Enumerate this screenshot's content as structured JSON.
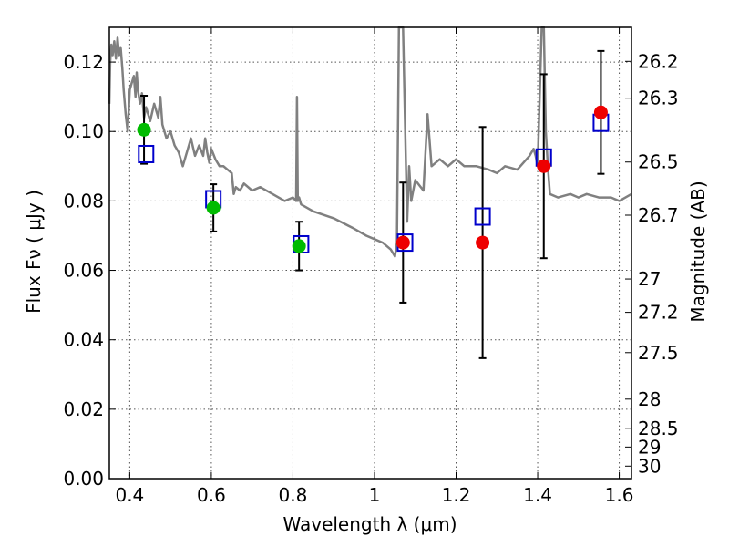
{
  "chart_data": {
    "type": "scatter",
    "xlabel": "Wavelength  λ (μm)",
    "ylabel": "Flux  Fν  ( μJy )",
    "ylabel_right": "Magnitude (AB)",
    "xlim": [
      0.35,
      1.63
    ],
    "ylim": [
      0.0,
      0.13
    ],
    "grid": true,
    "x_ticks": [
      0.4,
      0.6,
      0.8,
      1.0,
      1.2,
      1.4,
      1.6
    ],
    "x_tick_labels": [
      "0.4",
      "0.6",
      "0.8",
      "1",
      "1.2",
      "1.4",
      "1.6"
    ],
    "y_ticks": [
      0.0,
      0.02,
      0.04,
      0.06,
      0.08,
      0.1,
      0.12
    ],
    "y_tick_labels": [
      "0.00",
      "0.02",
      "0.04",
      "0.06",
      "0.08",
      "0.10",
      "0.12"
    ],
    "right_ticks": [
      {
        "label": "26.2",
        "flux": 0.1202
      },
      {
        "label": "26.3",
        "flux": 0.1096
      },
      {
        "label": "26.5",
        "flux": 0.0912
      },
      {
        "label": "26.7",
        "flux": 0.0759
      },
      {
        "label": "27",
        "flux": 0.0575
      },
      {
        "label": "27.2",
        "flux": 0.0479
      },
      {
        "label": "27.5",
        "flux": 0.0363
      },
      {
        "label": "28",
        "flux": 0.0229
      },
      {
        "label": "28.5",
        "flux": 0.0145
      },
      {
        "label": "29",
        "flux": 0.0091
      },
      {
        "label": "30",
        "flux": 0.0036
      }
    ],
    "colors": {
      "sed": "#808080",
      "model": "#0000cc",
      "green": "#00bb00",
      "red": "#ee0000",
      "errorbar": "#000000",
      "grid": "#555555"
    },
    "series": [
      {
        "kind": "line",
        "x": [
          0.35,
          0.352,
          0.355,
          0.358,
          0.362,
          0.366,
          0.37,
          0.374,
          0.378,
          0.382,
          0.385,
          0.39,
          0.395,
          0.4,
          0.405,
          0.41,
          0.414,
          0.417,
          0.42,
          0.425,
          0.43,
          0.435,
          0.44,
          0.45,
          0.46,
          0.47,
          0.475,
          0.48,
          0.49,
          0.5,
          0.51,
          0.52,
          0.53,
          0.55,
          0.56,
          0.57,
          0.58,
          0.585,
          0.59,
          0.595,
          0.6,
          0.61,
          0.62,
          0.63,
          0.65,
          0.655,
          0.66,
          0.67,
          0.68,
          0.7,
          0.72,
          0.75,
          0.78,
          0.8,
          0.808,
          0.81,
          0.812,
          0.815,
          0.82,
          0.85,
          0.9,
          0.95,
          0.98,
          1.0,
          1.02,
          1.04,
          1.05,
          1.055,
          1.06,
          1.07,
          1.08,
          1.085,
          1.09,
          1.1,
          1.12,
          1.13,
          1.14,
          1.16,
          1.18,
          1.2,
          1.22,
          1.25,
          1.28,
          1.3,
          1.32,
          1.35,
          1.38,
          1.39,
          1.395,
          1.4,
          1.41,
          1.415,
          1.42,
          1.425,
          1.43,
          1.45,
          1.48,
          1.5,
          1.52,
          1.55,
          1.58,
          1.6,
          1.63
        ],
        "y": [
          0.108,
          0.12,
          0.125,
          0.122,
          0.126,
          0.121,
          0.127,
          0.122,
          0.124,
          0.118,
          0.112,
          0.105,
          0.1,
          0.112,
          0.114,
          0.116,
          0.11,
          0.117,
          0.112,
          0.108,
          0.111,
          0.104,
          0.107,
          0.103,
          0.108,
          0.104,
          0.11,
          0.102,
          0.098,
          0.1,
          0.096,
          0.094,
          0.09,
          0.098,
          0.093,
          0.096,
          0.093,
          0.098,
          0.094,
          0.091,
          0.095,
          0.092,
          0.09,
          0.09,
          0.088,
          0.082,
          0.084,
          0.083,
          0.085,
          0.083,
          0.084,
          0.082,
          0.08,
          0.081,
          0.08,
          0.11,
          0.08,
          0.081,
          0.079,
          0.077,
          0.075,
          0.072,
          0.07,
          0.069,
          0.068,
          0.066,
          0.064,
          0.068,
          0.135,
          0.135,
          0.074,
          0.09,
          0.08,
          0.086,
          0.083,
          0.105,
          0.09,
          0.092,
          0.09,
          0.092,
          0.09,
          0.09,
          0.089,
          0.088,
          0.09,
          0.089,
          0.093,
          0.095,
          0.093,
          0.09,
          0.135,
          0.135,
          0.1,
          0.09,
          0.082,
          0.081,
          0.082,
          0.081,
          0.082,
          0.081,
          0.081,
          0.08,
          0.082
        ]
      },
      {
        "kind": "model-squares",
        "x": [
          0.44,
          0.605,
          0.82,
          1.075,
          1.265,
          1.415,
          1.555
        ],
        "y": [
          0.0935,
          0.0805,
          0.0675,
          0.068,
          0.0755,
          0.0925,
          0.1025
        ]
      },
      {
        "kind": "green-points",
        "x": [
          0.435,
          0.605,
          0.815
        ],
        "y": [
          0.1005,
          0.078,
          0.067
        ],
        "err": [
          0.0098,
          0.0068,
          0.007
        ]
      },
      {
        "kind": "red-points",
        "x": [
          1.07,
          1.265,
          1.415,
          1.555
        ],
        "y": [
          0.068,
          0.068,
          0.09,
          0.1055
        ],
        "err": [
          0.0173,
          0.0333,
          0.0265,
          0.0177
        ]
      }
    ]
  }
}
